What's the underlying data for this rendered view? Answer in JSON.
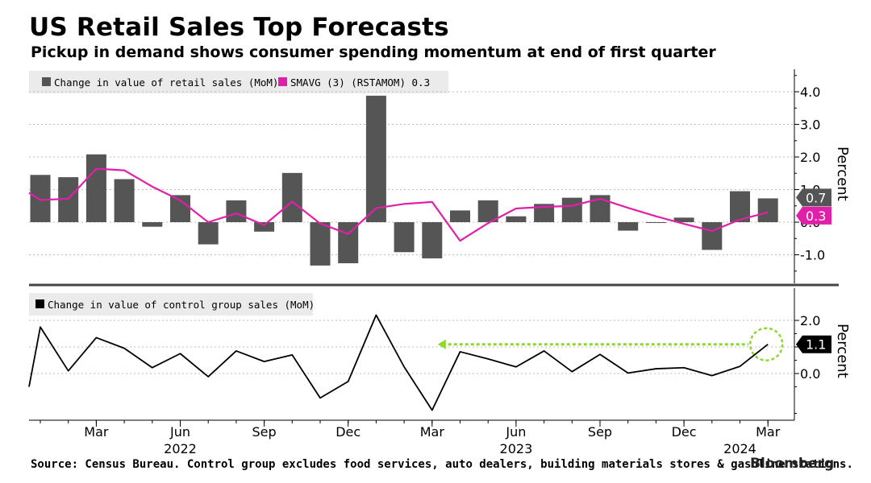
{
  "title": "US Retail Sales Top Forecasts",
  "subtitle": "Pickup in demand shows consumer spending momentum at end of first quarter",
  "source": "Source: Census Bureau. Control group excludes food services, auto dealers, building materials stores & gasoline stations.",
  "brand": "Bloomberg",
  "colors": {
    "bars": "#555555",
    "sma": "#e020a8",
    "control": "#000000",
    "arrow": "#8ed82a",
    "grid": "#bdbdbd"
  },
  "x_axis": {
    "month_ticks": [
      {
        "label": "Mar",
        "index": 2
      },
      {
        "label": "Jun",
        "index": 5
      },
      {
        "label": "Sep",
        "index": 8
      },
      {
        "label": "Dec",
        "index": 11
      },
      {
        "label": "Mar",
        "index": 14
      },
      {
        "label": "Jun",
        "index": 17
      },
      {
        "label": "Sep",
        "index": 20
      },
      {
        "label": "Dec",
        "index": 23
      },
      {
        "label": "Mar",
        "index": 26
      }
    ],
    "year_labels": [
      {
        "label": "2022",
        "index": 5
      },
      {
        "label": "2023",
        "index": 17
      },
      {
        "label": "2024",
        "index": 25
      }
    ]
  },
  "chart_data": [
    {
      "type": "bar",
      "panel": "top",
      "legend": [
        "Change in value of retail sales (MoM)",
        "SMAVG (3) (RSTAMOM) 0.3"
      ],
      "y_axis_title": "Percent",
      "ylim": [
        -2.0,
        4.5
      ],
      "y_ticks": [
        "4.0",
        "3.0",
        "2.0",
        "1.0",
        "0.0",
        "-1.0"
      ],
      "categories": [
        "Jan 2022",
        "Feb 2022",
        "Mar 2022",
        "Apr 2022",
        "May 2022",
        "Jun 2022",
        "Jul 2022",
        "Aug 2022",
        "Sep 2022",
        "Oct 2022",
        "Nov 2022",
        "Dec 2022",
        "Jan 2023",
        "Feb 2023",
        "Mar 2023",
        "Apr 2023",
        "May 2023",
        "Jun 2023",
        "Jul 2023",
        "Aug 2023",
        "Sep 2023",
        "Oct 2023",
        "Nov 2023",
        "Dec 2023",
        "Jan 2024",
        "Feb 2024",
        "Mar 2024"
      ],
      "series": [
        {
          "name": "Change in value of retail sales (MoM)",
          "kind": "bar",
          "values": [
            1.45,
            1.38,
            2.08,
            1.32,
            -0.14,
            0.83,
            -0.68,
            0.67,
            -0.29,
            1.51,
            -1.33,
            -1.26,
            3.88,
            -0.92,
            -1.11,
            0.36,
            0.67,
            0.18,
            0.56,
            0.75,
            0.83,
            -0.26,
            -0.02,
            0.14,
            -0.85,
            0.95,
            0.73
          ]
        },
        {
          "name": "SMAVG (3) (RSTAMOM) 0.3",
          "kind": "line",
          "prepend": 0.9,
          "values": [
            0.68,
            0.72,
            1.64,
            1.59,
            1.09,
            0.67,
            0.0,
            0.27,
            -0.09,
            0.63,
            -0.04,
            -0.36,
            0.43,
            0.56,
            0.62,
            -0.57,
            -0.03,
            0.42,
            0.47,
            0.5,
            0.72,
            0.44,
            0.18,
            -0.05,
            -0.27,
            0.08,
            0.3
          ]
        }
      ],
      "last_value_labels": [
        {
          "series": "Change in value of retail sales (MoM)",
          "text": "0.7",
          "value": 0.73
        },
        {
          "series": "SMAVG (3) (RSTAMOM) 0.3",
          "text": "0.3",
          "value": 0.3
        }
      ]
    },
    {
      "type": "line",
      "panel": "bottom",
      "legend": [
        "Change in value of control group sales (MoM)"
      ],
      "y_axis_title": "Percent",
      "ylim": [
        -1.8,
        2.3
      ],
      "y_ticks": [
        "2.0",
        "1.0",
        "0.0"
      ],
      "categories": [
        "Jan 2022",
        "Feb 2022",
        "Mar 2022",
        "Apr 2022",
        "May 2022",
        "Jun 2022",
        "Jul 2022",
        "Aug 2022",
        "Sep 2022",
        "Oct 2022",
        "Nov 2022",
        "Dec 2022",
        "Jan 2023",
        "Feb 2023",
        "Mar 2023",
        "Apr 2023",
        "May 2023",
        "Jun 2023",
        "Jul 2023",
        "Aug 2023",
        "Sep 2023",
        "Oct 2023",
        "Nov 2023",
        "Dec 2023",
        "Jan 2024",
        "Feb 2024",
        "Mar 2024"
      ],
      "series": [
        {
          "name": "Change in value of control group sales (MoM)",
          "prepend": -0.5,
          "values": [
            1.75,
            0.1,
            1.35,
            0.95,
            0.22,
            0.75,
            -0.12,
            0.85,
            0.45,
            0.7,
            -0.92,
            -0.3,
            2.2,
            0.25,
            -1.38,
            0.82,
            0.55,
            0.25,
            0.85,
            0.07,
            0.72,
            0.02,
            0.18,
            0.22,
            -0.08,
            0.27,
            1.1
          ]
        }
      ],
      "last_value_label": {
        "text": "1.1",
        "value": 1.1
      },
      "annotation": {
        "type": "arrow-to-circle",
        "from_index": 14.2,
        "value": 1.1,
        "highlight_index": 26
      }
    }
  ]
}
